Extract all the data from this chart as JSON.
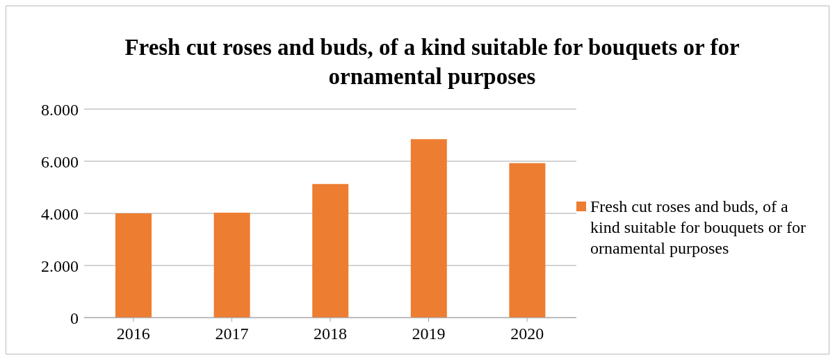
{
  "chart_data": {
    "type": "bar",
    "title": "Fresh cut roses and buds, of a kind suitable for bouquets or for ornamental purposes",
    "categories": [
      "2016",
      "2017",
      "2018",
      "2019",
      "2020"
    ],
    "series": [
      {
        "name": "Fresh cut roses and buds, of a kind suitable for bouquets or for ornamental purposes",
        "color": "#ed7d31",
        "values": [
          4000,
          4030,
          5130,
          6850,
          5930
        ]
      }
    ],
    "ylim": [
      0,
      8000
    ],
    "yticks": [
      {
        "value": 0,
        "label": "0"
      },
      {
        "value": 2000,
        "label": "2.000"
      },
      {
        "value": 4000,
        "label": "4.000"
      },
      {
        "value": 6000,
        "label": "6.000"
      },
      {
        "value": 8000,
        "label": "8.000"
      }
    ],
    "grid": "y",
    "legend": "right"
  }
}
